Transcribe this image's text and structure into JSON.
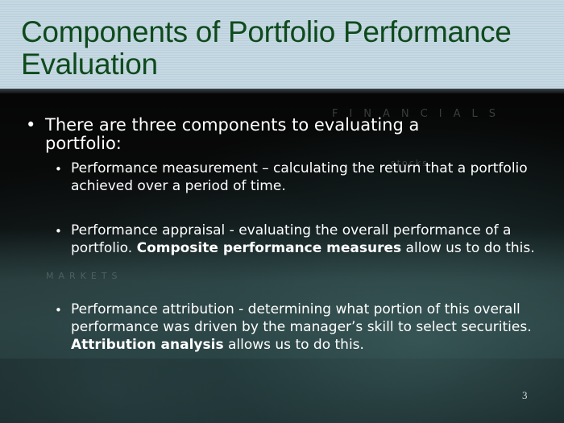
{
  "slide": {
    "title": "Components of Portfolio Performance Evaluation",
    "watermark": {
      "top": "FINANCIALS",
      "middle": "stocks",
      "left": "MARKETS"
    },
    "bullet": {
      "text": "There are three components to evaluating a portfolio:"
    },
    "sub_bullets": [
      {
        "pre": "Performance measurement – calculating the return that a portfolio achieved over a period of time.",
        "bold": "",
        "post": ""
      },
      {
        "pre": "Performance appraisal - evaluating the overall performance of a portfolio. ",
        "bold": "Composite performance measures",
        "post": " allow us to do this."
      },
      {
        "pre": "Performance attribution - determining what portion of this overall performance was driven by the manager’s skill to select securities. ",
        "bold": "Attribution analysis",
        "post": " allows us to do this."
      }
    ],
    "page_number": "3",
    "colors": {
      "header_bg": "#c6d9e3",
      "title": "#0f4a1c",
      "body_bg": "#000000",
      "text": "#ffffff"
    }
  }
}
